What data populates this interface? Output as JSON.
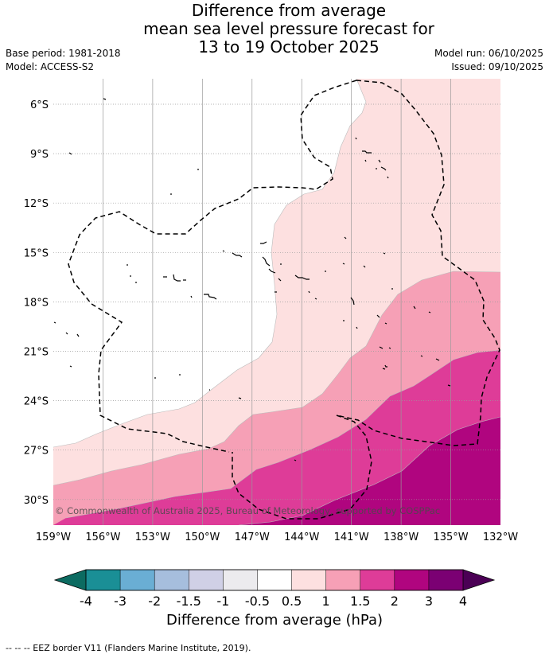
{
  "title": {
    "line1": "Difference from average",
    "line2": "mean sea level pressure forecast for",
    "line3": "13 to 19 October 2025"
  },
  "meta": {
    "base_period": "Base period: 1981-2018",
    "model": "Model: ACCESS-S2",
    "model_run": "Model run: 06/10/2025",
    "issued": "Issued: 09/10/2025"
  },
  "map": {
    "lat_labels": [
      "6°S",
      "9°S",
      "12°S",
      "15°S",
      "18°S",
      "21°S",
      "24°S",
      "27°S",
      "30°S"
    ],
    "lon_labels": [
      "159°W",
      "156°W",
      "153°W",
      "150°W",
      "147°W",
      "144°W",
      "141°W",
      "138°W",
      "135°W",
      "132°W"
    ],
    "credit": "© Commonwealth of Australia 2025, Bureau of Meteorology, supported by COSPPac"
  },
  "colorbar": {
    "ticks": [
      "-4",
      "-3",
      "-2",
      "-1.5",
      "-1",
      "-0.5",
      "0.5",
      "1",
      "1.5",
      "2",
      "3",
      "4"
    ],
    "colors": [
      "#1a8f96",
      "#6aaed4",
      "#a6bedd",
      "#d0d0e6",
      "#ecebee",
      "#ffffff",
      "#fde0e0",
      "#f6a0b6",
      "#de3c98",
      "#b0057f",
      "#7b0073"
    ],
    "under_color": "#0c6b61",
    "over_color": "#4b0055",
    "label": "Difference from average (hPa)"
  },
  "legend": {
    "eez": "--  --  -- EEZ border V11 (Flanders Marine Institute, 2019)."
  }
}
